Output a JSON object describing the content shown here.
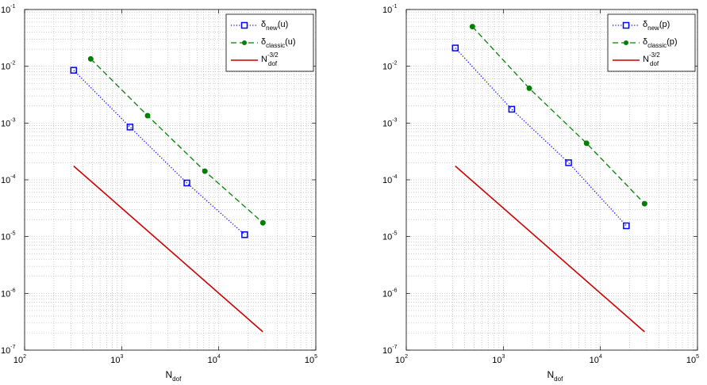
{
  "chart_data": [
    {
      "type": "line",
      "xscale": "log",
      "yscale": "log",
      "xlim": [
        100,
        100000
      ],
      "ylim": [
        1e-07,
        0.1
      ],
      "grid": true,
      "legend_placement": "top-right",
      "x_tick_labels": [
        "10",
        "10",
        "10",
        "10"
      ],
      "x_tick_exponents": [
        "2",
        "3",
        "4",
        "5"
      ],
      "y_tick_labels": [
        "10",
        "10",
        "10",
        "10",
        "10",
        "10",
        "10"
      ],
      "y_tick_exponents": [
        "-7",
        "-6",
        "-5",
        "-4",
        "-3",
        "-2",
        "-1"
      ],
      "xlabel": "N",
      "xlabel_sub": "dof",
      "series": [
        {
          "legend_main": "δ",
          "legend_sub": "new",
          "legend_tail": "(u)",
          "color": "#0000ff",
          "style": "dotted",
          "marker": "square",
          "x": [
            320,
            1220,
            4700,
            18500
          ],
          "y": [
            0.0085,
            0.00085,
            8.8e-05,
            1.08e-05
          ]
        },
        {
          "legend_main": "δ",
          "legend_sub": "classic",
          "legend_tail": "(u)",
          "color": "#008000",
          "style": "dashed",
          "marker": "dot",
          "x": [
            480,
            1850,
            7200,
            28500
          ],
          "y": [
            0.0135,
            0.00135,
            0.000142,
            1.75e-05
          ]
        },
        {
          "legend_main": "N",
          "legend_sub": "dof",
          "legend_sup": "-3/2",
          "color": "#cc0000",
          "style": "solid",
          "marker": "none",
          "x": [
            320,
            28500
          ],
          "y": [
            0.000175,
            2.1e-07
          ]
        }
      ]
    },
    {
      "type": "line",
      "xscale": "log",
      "yscale": "log",
      "xlim": [
        100,
        100000
      ],
      "ylim": [
        1e-07,
        0.1
      ],
      "grid": true,
      "legend_placement": "top-right",
      "x_tick_labels": [
        "10",
        "10",
        "10",
        "10"
      ],
      "x_tick_exponents": [
        "2",
        "3",
        "4",
        "5"
      ],
      "y_tick_labels": [
        "10",
        "10",
        "10",
        "10",
        "10",
        "10",
        "10"
      ],
      "y_tick_exponents": [
        "-7",
        "-6",
        "-5",
        "-4",
        "-3",
        "-2",
        "-1"
      ],
      "xlabel": "N",
      "xlabel_sub": "dof",
      "series": [
        {
          "legend_main": "δ",
          "legend_sub": "new",
          "legend_tail": "(p)",
          "color": "#0000ff",
          "style": "dotted",
          "marker": "square",
          "x": [
            320,
            1220,
            4700,
            18500
          ],
          "y": [
            0.021,
            0.00175,
            0.0002,
            1.55e-05
          ]
        },
        {
          "legend_main": "δ",
          "legend_sub": "classic",
          "legend_tail": "(p)",
          "color": "#008000",
          "style": "dashed",
          "marker": "dot",
          "x": [
            480,
            1850,
            7200,
            28500
          ],
          "y": [
            0.05,
            0.0041,
            0.00044,
            3.8e-05
          ]
        },
        {
          "legend_main": "N",
          "legend_sub": "dof",
          "legend_sup": "-3/2",
          "color": "#cc0000",
          "style": "solid",
          "marker": "none",
          "x": [
            320,
            28500
          ],
          "y": [
            0.000175,
            2.1e-07
          ]
        }
      ]
    }
  ]
}
